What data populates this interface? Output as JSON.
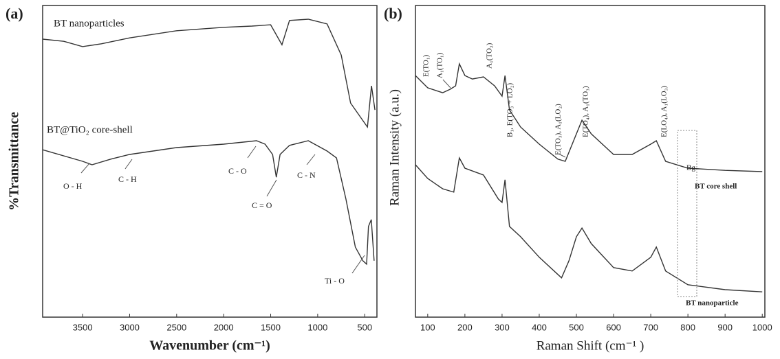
{
  "chart_data": [
    {
      "type": "line",
      "label": "(a)",
      "x_label": "Wavenumber (cm⁻¹)",
      "y_label": "%Transmittance",
      "xlim": [
        3925,
        370
      ],
      "xticks": [
        3500,
        3000,
        2500,
        2000,
        1500,
        1000,
        500
      ],
      "ylim": [
        0,
        100
      ],
      "series": [
        {
          "name": "BT nanoparticles",
          "color": "#333333",
          "x": [
            3925,
            3700,
            3500,
            3300,
            3000,
            2500,
            2000,
            1700,
            1500,
            1380,
            1300,
            1100,
            900,
            750,
            650,
            471,
            428,
            391
          ],
          "values": [
            89.2,
            88.5,
            86.8,
            87.7,
            89.6,
            91.9,
            93.0,
            93.4,
            93.8,
            87.4,
            95.2,
            95.6,
            94.1,
            84.1,
            68.7,
            61.0,
            74.2,
            66.5
          ]
        },
        {
          "name": "BT@TiO₂ core-shell",
          "color": "#333333",
          "x": [
            3925,
            3500,
            3400,
            3200,
            3000,
            2500,
            2000,
            1650,
            1560,
            1480,
            1440,
            1400,
            1300,
            1100,
            900,
            800,
            700,
            600,
            520,
            480,
            460,
            430,
            400
          ],
          "values": [
            53.7,
            50.0,
            48.9,
            50.7,
            52.2,
            54.4,
            55.5,
            56.6,
            55.5,
            52.2,
            44.9,
            52.2,
            55.1,
            56.6,
            53.3,
            51.1,
            37.9,
            22.5,
            18.1,
            17.0,
            29.1,
            31.3,
            18.1
          ]
        }
      ],
      "annotations": [
        "O - H",
        "C - H",
        "C - O",
        "C = O",
        "C - N",
        "Ti - O"
      ]
    },
    {
      "type": "line",
      "label": "(b)",
      "x_label": "Raman Shift (cm⁻¹ )",
      "y_label": "Raman Intensity (a.u.)",
      "xlim": [
        67,
        1007
      ],
      "xticks": [
        100,
        200,
        300,
        400,
        500,
        600,
        700,
        800,
        900,
        1000
      ],
      "ylim": [
        0,
        100
      ],
      "series": [
        {
          "name": "BT core shell",
          "color": "#333333",
          "x": [
            67,
            100,
            140,
            160,
            175,
            185,
            200,
            220,
            250,
            280,
            300,
            308,
            320,
            350,
            400,
            450,
            470,
            500,
            515,
            540,
            600,
            650,
            700,
            715,
            740,
            800,
            900,
            1000
          ],
          "values": [
            77.5,
            73.6,
            72.0,
            73.1,
            74.2,
            81.3,
            77.5,
            76.4,
            77.1,
            74.2,
            70.9,
            77.5,
            66.5,
            61.0,
            55.5,
            50.7,
            50.0,
            58.8,
            63.2,
            58.8,
            52.2,
            52.2,
            55.5,
            56.6,
            50.0,
            47.8,
            47.1,
            46.7
          ]
        },
        {
          "name": "BT nanoparticle",
          "color": "#333333",
          "x": [
            67,
            100,
            140,
            170,
            185,
            200,
            250,
            290,
            300,
            308,
            320,
            350,
            400,
            450,
            460,
            480,
            500,
            515,
            540,
            600,
            650,
            700,
            715,
            740,
            800,
            900,
            1000
          ],
          "values": [
            48.9,
            44.5,
            41.2,
            40.1,
            51.1,
            47.8,
            45.6,
            37.9,
            36.8,
            44.1,
            29.1,
            25.8,
            19.2,
            13.7,
            12.6,
            18.1,
            25.8,
            28.6,
            23.6,
            15.9,
            14.8,
            19.2,
            22.5,
            14.8,
            10.4,
            8.8,
            8.1
          ]
        }
      ],
      "annotations": [
        "E(TO₁)",
        "A₁(TO₁)",
        "A₁(TO₂)",
        "B₁, E(TO₃ + LO₂)",
        "E(TO₃), A₁(LO₂)",
        "E(TO₄), A₁(TO₃)",
        "E(LO₄), A₁(LO₃)",
        "Bg"
      ]
    }
  ]
}
